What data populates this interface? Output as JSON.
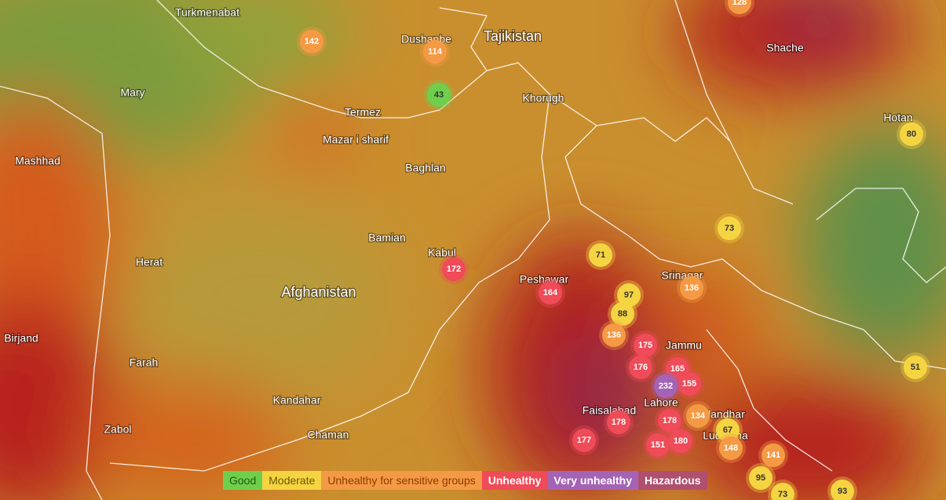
{
  "places": [
    {
      "label": "Turkmenabat"
    },
    {
      "label": "Dushanbe"
    },
    {
      "label": "Tajikistan",
      "country": true
    },
    {
      "label": "Shache"
    },
    {
      "label": "Mary"
    },
    {
      "label": "Termez"
    },
    {
      "label": "Khorugh"
    },
    {
      "label": "Hotan"
    },
    {
      "label": "Mazar i sharif"
    },
    {
      "label": "Mashhad"
    },
    {
      "label": "Baghlan"
    },
    {
      "label": "Bamian"
    },
    {
      "label": "Herat"
    },
    {
      "label": "Kabul"
    },
    {
      "label": "Peshawar"
    },
    {
      "label": "Afghanistan",
      "country": true
    },
    {
      "label": "Srinagar"
    },
    {
      "label": "Jammu"
    },
    {
      "label": "Birjand"
    },
    {
      "label": "Farah"
    },
    {
      "label": "Kandahar"
    },
    {
      "label": "Zabol"
    },
    {
      "label": "Chaman"
    },
    {
      "label": "Faisalabad"
    },
    {
      "label": "Lahore"
    },
    {
      "label": "Ludhiana"
    },
    {
      "label": "Jalandhar"
    }
  ],
  "markers": [
    142,
    114,
    43,
    128,
    80,
    73,
    71,
    172,
    164,
    97,
    88,
    136,
    136,
    175,
    176,
    165,
    155,
    232,
    134,
    178,
    178,
    177,
    151,
    180,
    67,
    148,
    141,
    95,
    73,
    93,
    51
  ],
  "legend": [
    {
      "label": "Good",
      "color": "#6fcf4c",
      "max": 50
    },
    {
      "label": "Moderate",
      "color": "#f5d442",
      "max": 100
    },
    {
      "label": "Unhealthy for sensitive groups",
      "color": "#f59a44",
      "max": 150
    },
    {
      "label": "Unhealthy",
      "color": "#ef4b58",
      "max": 200
    },
    {
      "label": "Very unhealthy",
      "color": "#a463b4",
      "max": 300
    },
    {
      "label": "Hazardous",
      "color": "#b0506e",
      "max": 500
    }
  ]
}
